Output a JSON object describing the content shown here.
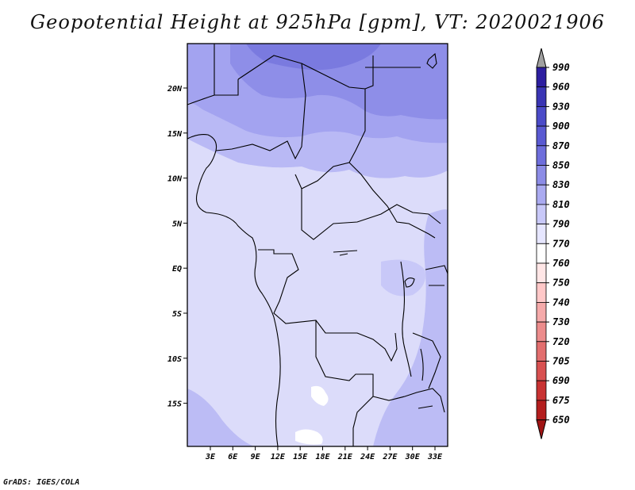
{
  "title": "Geopotential Height at 925hPa [gpm], VT: 2020021906",
  "footer": "GrADS: IGES/COLA",
  "map": {
    "lon_labels": [
      "3E",
      "6E",
      "9E",
      "12E",
      "15E",
      "18E",
      "21E",
      "24E",
      "27E",
      "30E",
      "33E"
    ],
    "lat_labels": [
      "20N",
      "15N",
      "10N",
      "5N",
      "EQ",
      "5S",
      "10S",
      "15S"
    ]
  },
  "colorbar": {
    "levels": [
      "990",
      "960",
      "930",
      "900",
      "870",
      "850",
      "830",
      "810",
      "790",
      "770",
      "760",
      "750",
      "740",
      "730",
      "720",
      "705",
      "690",
      "675",
      "650"
    ],
    "colors": [
      "#240078",
      "#2d1ea0",
      "#3a35b4",
      "#4b4bc8",
      "#5a5ad2",
      "#6e6edc",
      "#8c8ce6",
      "#aaaaf0",
      "#c8c8f8",
      "#e6e6ff",
      "#ffffff",
      "#ffe6e6",
      "#ffc8c8",
      "#f5aaaa",
      "#ec8c8c",
      "#e26e6e",
      "#d85050",
      "#c83232",
      "#b41e1e",
      "#a01414"
    ],
    "arrow_top_color": "#a0a0a0",
    "arrow_bottom_color": "#a01414"
  }
}
